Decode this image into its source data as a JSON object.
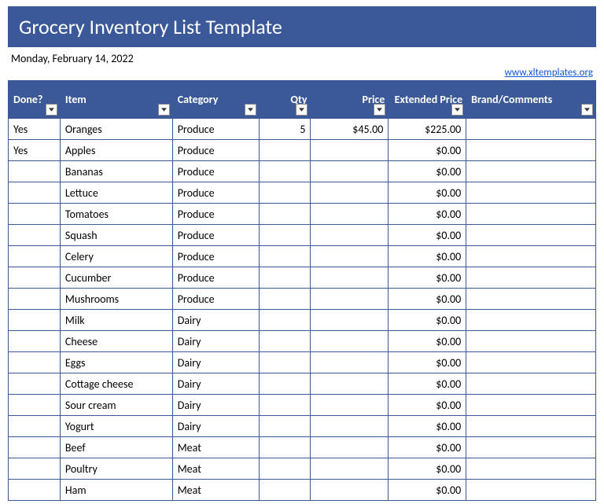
{
  "title": "Grocery Inventory List Template",
  "date": "Monday, February 14, 2022",
  "link_text": "www.xltemplates.org",
  "colors": {
    "header_bg": "#3b5998",
    "header_text": "#ffffff",
    "border": "#3b5998",
    "link": "#1155cc"
  },
  "columns": [
    {
      "key": "done",
      "label": "Done?",
      "class": "col-done"
    },
    {
      "key": "item",
      "label": "Item",
      "class": "col-item"
    },
    {
      "key": "category",
      "label": "Category",
      "class": "col-category"
    },
    {
      "key": "qty",
      "label": "Qty",
      "class": "col-qty"
    },
    {
      "key": "price",
      "label": "Price",
      "class": "col-price"
    },
    {
      "key": "ext",
      "label": "Extended Price",
      "class": "col-ext"
    },
    {
      "key": "brand",
      "label": "Brand/Comments",
      "class": "col-brand"
    }
  ],
  "rows": [
    {
      "done": "Yes",
      "item": "Oranges",
      "category": "Produce",
      "qty": "5",
      "price": "$45.00",
      "ext": "$225.00",
      "brand": ""
    },
    {
      "done": "Yes",
      "item": "Apples",
      "category": "Produce",
      "qty": "",
      "price": "",
      "ext": "$0.00",
      "brand": ""
    },
    {
      "done": "",
      "item": "Bananas",
      "category": "Produce",
      "qty": "",
      "price": "",
      "ext": "$0.00",
      "brand": ""
    },
    {
      "done": "",
      "item": "Lettuce",
      "category": "Produce",
      "qty": "",
      "price": "",
      "ext": "$0.00",
      "brand": ""
    },
    {
      "done": "",
      "item": "Tomatoes",
      "category": "Produce",
      "qty": "",
      "price": "",
      "ext": "$0.00",
      "brand": ""
    },
    {
      "done": "",
      "item": "Squash",
      "category": "Produce",
      "qty": "",
      "price": "",
      "ext": "$0.00",
      "brand": ""
    },
    {
      "done": "",
      "item": "Celery",
      "category": "Produce",
      "qty": "",
      "price": "",
      "ext": "$0.00",
      "brand": ""
    },
    {
      "done": "",
      "item": "Cucumber",
      "category": "Produce",
      "qty": "",
      "price": "",
      "ext": "$0.00",
      "brand": ""
    },
    {
      "done": "",
      "item": "Mushrooms",
      "category": "Produce",
      "qty": "",
      "price": "",
      "ext": "$0.00",
      "brand": ""
    },
    {
      "done": "",
      "item": "Milk",
      "category": "Dairy",
      "qty": "",
      "price": "",
      "ext": "$0.00",
      "brand": ""
    },
    {
      "done": "",
      "item": "Cheese",
      "category": "Dairy",
      "qty": "",
      "price": "",
      "ext": "$0.00",
      "brand": ""
    },
    {
      "done": "",
      "item": "Eggs",
      "category": "Dairy",
      "qty": "",
      "price": "",
      "ext": "$0.00",
      "brand": ""
    },
    {
      "done": "",
      "item": "Cottage cheese",
      "category": "Dairy",
      "qty": "",
      "price": "",
      "ext": "$0.00",
      "brand": ""
    },
    {
      "done": "",
      "item": "Sour cream",
      "category": "Dairy",
      "qty": "",
      "price": "",
      "ext": "$0.00",
      "brand": ""
    },
    {
      "done": "",
      "item": "Yogurt",
      "category": "Dairy",
      "qty": "",
      "price": "",
      "ext": "$0.00",
      "brand": ""
    },
    {
      "done": "",
      "item": "Beef",
      "category": "Meat",
      "qty": "",
      "price": "",
      "ext": "$0.00",
      "brand": ""
    },
    {
      "done": "",
      "item": "Poultry",
      "category": "Meat",
      "qty": "",
      "price": "",
      "ext": "$0.00",
      "brand": ""
    },
    {
      "done": "",
      "item": "Ham",
      "category": "Meat",
      "qty": "",
      "price": "",
      "ext": "$0.00",
      "brand": ""
    }
  ]
}
